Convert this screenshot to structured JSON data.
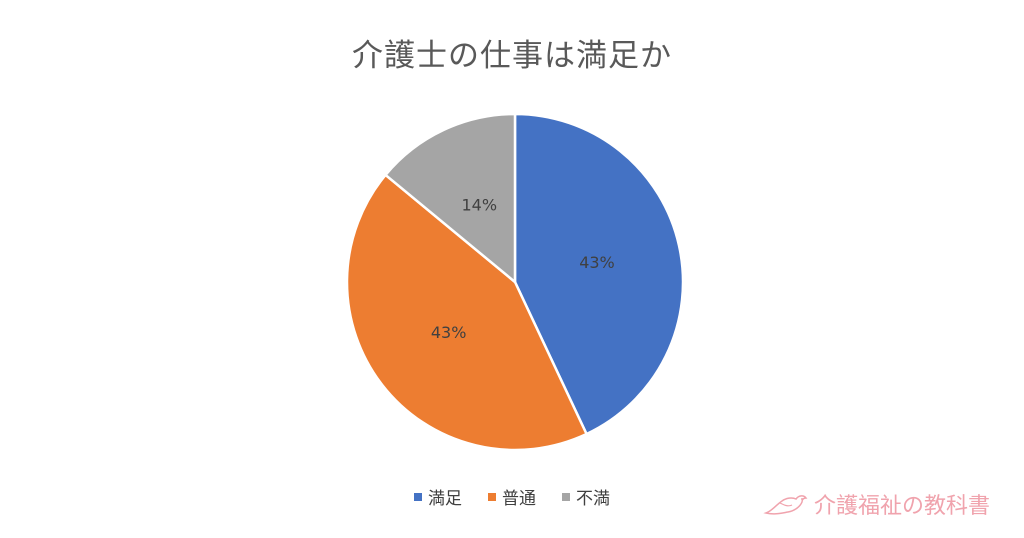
{
  "chart_data": {
    "type": "pie",
    "title": "介護士の仕事は満足か",
    "slices": [
      {
        "label": "満足",
        "value": 43,
        "display": "43%",
        "color": "#4472C4"
      },
      {
        "label": "普通",
        "value": 43,
        "display": "43%",
        "color": "#ED7D31"
      },
      {
        "label": "不満",
        "value": 14,
        "display": "14%",
        "color": "#A5A5A5"
      }
    ],
    "legend_position": "bottom"
  },
  "watermark": {
    "text": "介護福祉の教科書",
    "color": "#f0a3ad"
  }
}
